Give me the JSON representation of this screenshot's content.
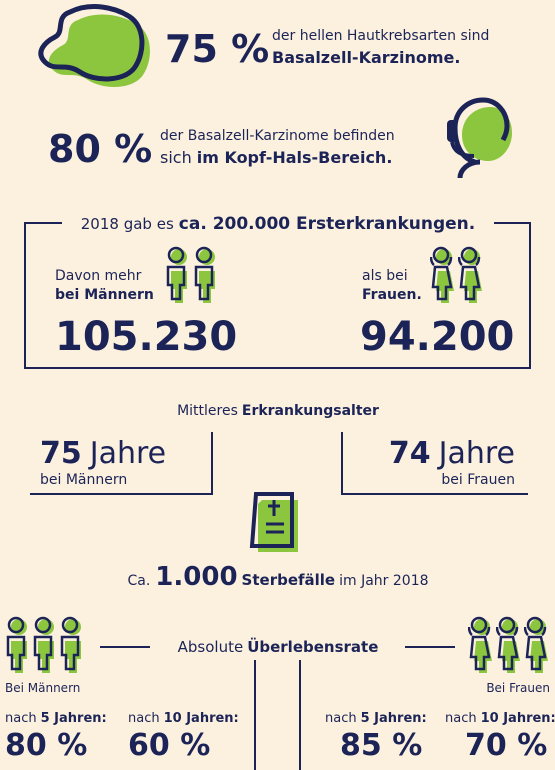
{
  "facts": [
    {
      "value": "75 %",
      "text": "der hellen Hautkrebsarten sind",
      "bold": "Basalzell-Karzinome."
    },
    {
      "value": "80 %",
      "text": "der Basalzell-Karzinome befinden",
      "pre": "sich",
      "bold": "im Kopf-Hals-Bereich."
    }
  ],
  "incidence": {
    "intro": "2018 gab es",
    "bold": "ca. 200.000 Ersterkrankungen.",
    "men": {
      "label": "Davon mehr",
      "bold": "bei Männern",
      "value": "105.230"
    },
    "women": {
      "label": "als bei",
      "bold": "Frauen.",
      "value": "94.200"
    }
  },
  "age": {
    "label": "Mittleres",
    "bold": "Erkrankungsalter",
    "men": {
      "value": "75",
      "unit": "Jahre",
      "label": "bei Männern"
    },
    "women": {
      "value": "74",
      "unit": "Jahre",
      "label": "bei Frauen"
    }
  },
  "deaths": {
    "pre": "Ca.",
    "value": "1.000",
    "bold": "Sterbefälle",
    "post": "im Jahr 2018"
  },
  "survival": {
    "title": "Absolute",
    "bold": "Überlebensrate",
    "men": {
      "label": "Bei Männern",
      "items": [
        {
          "pre": "nach",
          "bold": "5 Jahren:",
          "value": "80 %"
        },
        {
          "pre": "nach",
          "bold": "10 Jahren:",
          "value": "60 %"
        }
      ]
    },
    "women": {
      "label": "Bei Frauen",
      "items": [
        {
          "pre": "nach",
          "bold": "5 Jahren:",
          "value": "85 %"
        },
        {
          "pre": "nach",
          "bold": "10 Jahren:",
          "value": "70 %"
        }
      ]
    }
  }
}
